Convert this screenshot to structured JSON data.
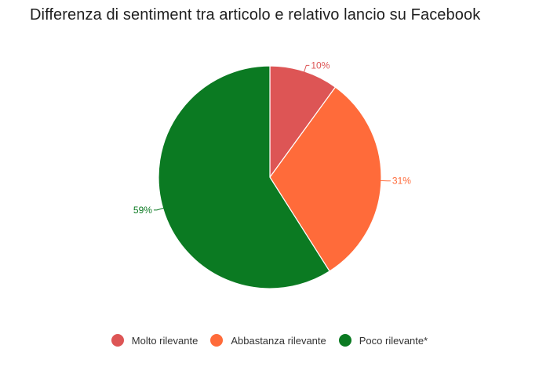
{
  "chart_data": {
    "type": "pie",
    "title": "Differenza di sentiment tra articolo e relativo lancio su Facebook",
    "slices": [
      {
        "name": "Molto rilevante",
        "value": 10,
        "label": "10%",
        "color": "#dd5555"
      },
      {
        "name": "Abbastanza rilevante",
        "value": 31,
        "label": "31%",
        "color": "#ff6b3a"
      },
      {
        "name": "Poco rilevante*",
        "value": 59,
        "label": "59%",
        "color": "#0b7a22"
      }
    ],
    "legend_position": "bottom"
  }
}
